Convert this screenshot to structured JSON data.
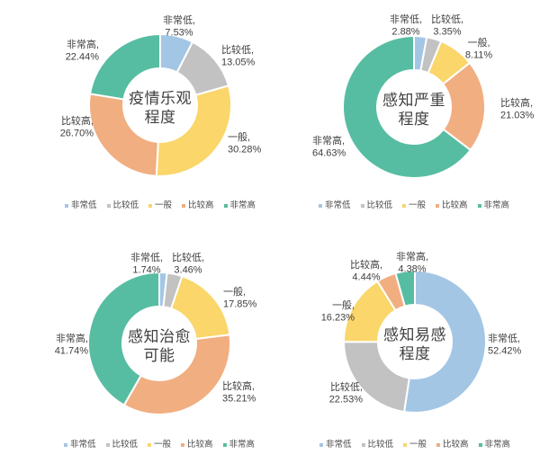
{
  "legend": {
    "items": [
      "非常低",
      "比较低",
      "一般",
      "比较高",
      "非常高"
    ]
  },
  "colors": [
    "#A3C6E5",
    "#C2C2C2",
    "#FAD66B",
    "#F1AE81",
    "#57BDA2"
  ],
  "text_color": "#3f3f3f",
  "label_separator": ",",
  "chart_data": [
    {
      "type": "donut",
      "title": "疫情乐观程度",
      "title_lines": [
        "疫情乐观",
        "程度"
      ],
      "categories": [
        "非常低",
        "比较低",
        "一般",
        "比较高",
        "非常高"
      ],
      "values": [
        7.53,
        13.05,
        30.28,
        26.7,
        22.44
      ],
      "value_labels": [
        "7.53%",
        "13.05%",
        "30.28%",
        "26.70%",
        "22.44%"
      ],
      "label_lines": [
        [
          "非常低,",
          "7.53%"
        ],
        [
          "比较低,",
          "13.05%"
        ],
        [
          "一般,",
          "30.28%"
        ],
        [
          "比较高,",
          "26.70%"
        ],
        [
          "非常高,",
          "22.44%"
        ]
      ],
      "legend_position": "bottom"
    },
    {
      "type": "donut",
      "title": "感知严重程度",
      "title_lines": [
        "感知严重",
        "程度"
      ],
      "categories": [
        "非常低",
        "比较低",
        "一般",
        "比较高",
        "非常高"
      ],
      "values": [
        2.88,
        3.35,
        8.11,
        21.03,
        64.63
      ],
      "value_labels": [
        "2.88%",
        "3.35%",
        "8.11%",
        "21.03%",
        "64.63%"
      ],
      "label_lines": [
        [
          "非常低,",
          "2.88%"
        ],
        [
          "比较低,",
          "3.35%"
        ],
        [
          "一般,",
          "8.11%"
        ],
        [
          "比较高,",
          "21.03%"
        ],
        [
          "非常高,",
          "64.63%"
        ]
      ],
      "legend_position": "bottom"
    },
    {
      "type": "donut",
      "title": "感知治愈可能",
      "title_lines": [
        "感知治愈",
        "可能"
      ],
      "categories": [
        "非常低",
        "比较低",
        "一般",
        "比较高",
        "非常高"
      ],
      "values": [
        1.74,
        3.46,
        17.85,
        35.21,
        41.74
      ],
      "value_labels": [
        "1.74%",
        "3.46%",
        "17.85%",
        "35.21%",
        "41.74%"
      ],
      "label_lines": [
        [
          "非常低,",
          "1.74%"
        ],
        [
          "比较低,",
          "3.46%"
        ],
        [
          "一般,",
          "17.85%"
        ],
        [
          "比较高,",
          "35.21%"
        ],
        [
          "非常高,",
          "41.74%"
        ]
      ],
      "legend_position": "bottom"
    },
    {
      "type": "donut",
      "title": "感知易感程度",
      "title_lines": [
        "感知易感",
        "程度"
      ],
      "categories": [
        "非常低",
        "比较低",
        "一般",
        "比较高",
        "非常高"
      ],
      "values": [
        52.42,
        22.53,
        16.23,
        4.44,
        4.38
      ],
      "value_labels": [
        "52.42%",
        "22.53%",
        "16.23%",
        "4.44%",
        "4.38%"
      ],
      "label_lines": [
        [
          "非常低,",
          "52.42%"
        ],
        [
          "比较低,",
          "22.53%"
        ],
        [
          "一般,",
          "16.23%"
        ],
        [
          "比较高,",
          "4.44%"
        ],
        [
          "非常高,",
          "4.38%"
        ]
      ],
      "legend_position": "bottom"
    }
  ]
}
